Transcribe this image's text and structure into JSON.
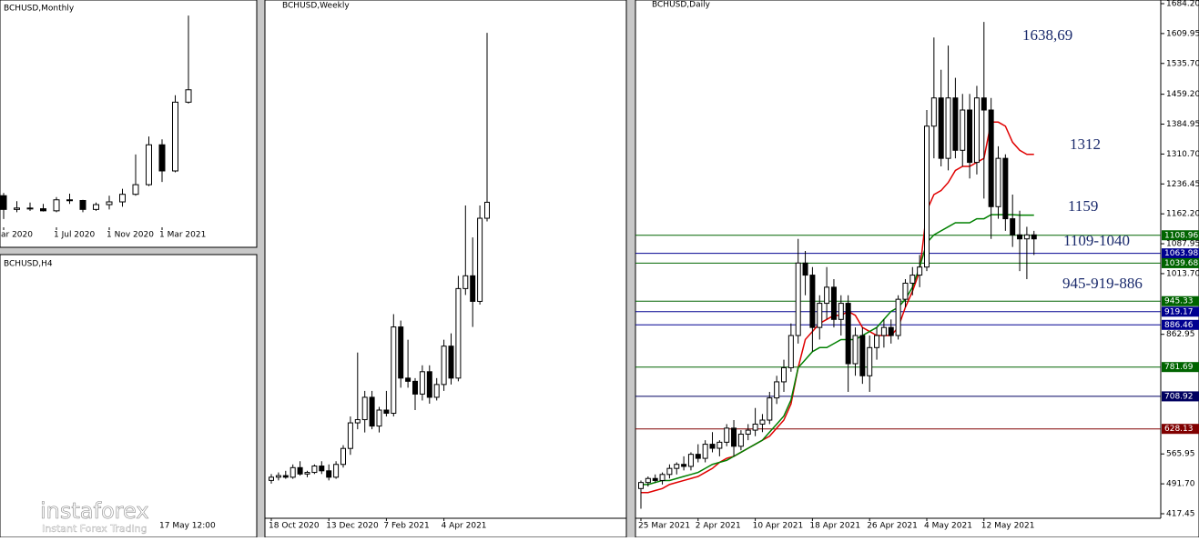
{
  "chart_data": [
    {
      "type": "candlestick",
      "title": "BCHUSD,Monthly",
      "categories": [
        "ar 2020",
        null,
        null,
        null,
        "1 Jul 2020",
        null,
        null,
        null,
        "1 Nov 2020",
        null,
        null,
        null,
        "1 Mar 2021",
        null,
        null
      ],
      "ylim": [
        100,
        1700
      ],
      "ohlc": [
        [
          330,
          350,
          160,
          230
        ],
        [
          230,
          290,
          210,
          240
        ],
        [
          240,
          280,
          220,
          235
        ],
        [
          235,
          270,
          215,
          220
        ],
        [
          220,
          320,
          210,
          300
        ],
        [
          300,
          345,
          270,
          295
        ],
        [
          295,
          300,
          210,
          230
        ],
        [
          230,
          280,
          220,
          265
        ],
        [
          265,
          330,
          230,
          285
        ],
        [
          285,
          380,
          250,
          340
        ],
        [
          340,
          630,
          330,
          410
        ],
        [
          410,
          760,
          400,
          700
        ],
        [
          700,
          740,
          430,
          510
        ],
        [
          510,
          1060,
          500,
          1010
        ],
        [
          1010,
          1640,
          1000,
          1100
        ]
      ]
    },
    {
      "type": "candlestick",
      "title": "BCHUSD,Weekly",
      "categories": [
        "18 Oct 2020",
        null,
        null,
        null,
        null,
        null,
        null,
        null,
        "13 Dec 2020",
        null,
        null,
        null,
        null,
        null,
        null,
        null,
        "7 Feb 2021",
        null,
        null,
        null,
        null,
        null,
        null,
        null,
        "4 Apr 2021",
        null,
        null,
        null,
        null,
        null,
        null
      ],
      "ylim": [
        150,
        1700
      ],
      "ohlc": [
        [
          240,
          260,
          230,
          250
        ],
        [
          250,
          265,
          240,
          255
        ],
        [
          255,
          270,
          245,
          250
        ],
        [
          250,
          290,
          245,
          280
        ],
        [
          280,
          300,
          255,
          260
        ],
        [
          260,
          270,
          250,
          265
        ],
        [
          265,
          290,
          260,
          285
        ],
        [
          285,
          300,
          260,
          270
        ],
        [
          270,
          290,
          240,
          250
        ],
        [
          250,
          300,
          245,
          290
        ],
        [
          290,
          350,
          280,
          340
        ],
        [
          340,
          440,
          320,
          420
        ],
        [
          420,
          640,
          400,
          430
        ],
        [
          430,
          520,
          390,
          500
        ],
        [
          500,
          520,
          400,
          410
        ],
        [
          410,
          470,
          390,
          460
        ],
        [
          460,
          520,
          440,
          450
        ],
        [
          450,
          760,
          440,
          720
        ],
        [
          720,
          740,
          530,
          560
        ],
        [
          560,
          680,
          530,
          550
        ],
        [
          550,
          560,
          460,
          510
        ],
        [
          510,
          600,
          490,
          580
        ],
        [
          580,
          600,
          480,
          500
        ],
        [
          500,
          560,
          490,
          540
        ],
        [
          540,
          680,
          520,
          660
        ],
        [
          660,
          700,
          540,
          560
        ],
        [
          560,
          880,
          550,
          840
        ],
        [
          840,
          1100,
          820,
          880
        ],
        [
          880,
          1000,
          720,
          800
        ],
        [
          800,
          1100,
          790,
          1060
        ],
        [
          1060,
          1640,
          1050,
          1110
        ]
      ]
    },
    {
      "type": "candlestick",
      "title": "BCHUSD,Daily",
      "categories": [
        "25 Mar 2021",
        null,
        null,
        null,
        null,
        null,
        null,
        null,
        "2 Apr 2021",
        null,
        null,
        null,
        null,
        null,
        null,
        null,
        "10 Apr 2021",
        null,
        null,
        null,
        null,
        null,
        null,
        null,
        "18 Apr 2021",
        null,
        null,
        null,
        null,
        null,
        null,
        null,
        "26 Apr 2021",
        null,
        null,
        null,
        null,
        null,
        null,
        null,
        "4 May 2021",
        null,
        null,
        null,
        null,
        null,
        null,
        null,
        "12 May 2021",
        null,
        null,
        null,
        null,
        null,
        null,
        null
      ],
      "ylim": [
        417.45,
        1684.2
      ],
      "yticks": [
        {
          "value": 1684.2,
          "label": "1684.20"
        },
        1609.95,
        {
          "value": 1535.7,
          "label": "1535.70"
        },
        {
          "value": 1459.2,
          "label": "1459.20"
        },
        1384.95,
        {
          "value": 1310.7,
          "label": "1310.70"
        },
        1236.45,
        {
          "value": 1162.2,
          "label": "1162.20"
        },
        1087.95,
        {
          "value": 1013.7,
          "label": "1013.70"
        },
        862.95,
        565.95,
        {
          "value": 491.7,
          "label": "491.70"
        },
        417.45
      ],
      "ohlc": [
        [
          480,
          500,
          430,
          495
        ],
        [
          495,
          510,
          485,
          505
        ],
        [
          505,
          515,
          495,
          500
        ],
        [
          500,
          520,
          490,
          515
        ],
        [
          515,
          540,
          505,
          530
        ],
        [
          530,
          545,
          515,
          540
        ],
        [
          540,
          560,
          525,
          535
        ],
        [
          535,
          570,
          525,
          565
        ],
        [
          565,
          590,
          545,
          555
        ],
        [
          555,
          600,
          545,
          590
        ],
        [
          590,
          620,
          570,
          580
        ],
        [
          580,
          600,
          560,
          595
        ],
        [
          595,
          640,
          585,
          630
        ],
        [
          630,
          650,
          560,
          585
        ],
        [
          585,
          625,
          575,
          615
        ],
        [
          615,
          640,
          600,
          625
        ],
        [
          625,
          680,
          610,
          640
        ],
        [
          640,
          665,
          620,
          650
        ],
        [
          650,
          720,
          640,
          705
        ],
        [
          705,
          760,
          690,
          745
        ],
        [
          745,
          800,
          720,
          780
        ],
        [
          780,
          890,
          770,
          860
        ],
        [
          860,
          1100,
          840,
          1040
        ],
        [
          1040,
          1070,
          960,
          1010
        ],
        [
          1010,
          1030,
          820,
          880
        ],
        [
          880,
          960,
          850,
          940
        ],
        [
          940,
          1030,
          900,
          980
        ],
        [
          980,
          1000,
          880,
          900
        ],
        [
          900,
          960,
          860,
          940
        ],
        [
          940,
          960,
          720,
          790
        ],
        [
          790,
          880,
          760,
          860
        ],
        [
          860,
          880,
          740,
          760
        ],
        [
          760,
          860,
          720,
          830
        ],
        [
          830,
          880,
          800,
          860
        ],
        [
          860,
          900,
          830,
          880
        ],
        [
          880,
          900,
          840,
          860
        ],
        [
          860,
          960,
          850,
          950
        ],
        [
          950,
          1000,
          930,
          990
        ],
        [
          990,
          1030,
          960,
          1010
        ],
        [
          1010,
          1060,
          980,
          1030
        ],
        [
          1030,
          1420,
          1020,
          1380
        ],
        [
          1380,
          1600,
          1300,
          1450
        ],
        [
          1450,
          1520,
          1280,
          1300
        ],
        [
          1300,
          1580,
          1270,
          1450
        ],
        [
          1450,
          1500,
          1300,
          1320
        ],
        [
          1320,
          1460,
          1280,
          1420
        ],
        [
          1420,
          1460,
          1250,
          1290
        ],
        [
          1290,
          1480,
          1260,
          1450
        ],
        [
          1450,
          1638.69,
          1200,
          1420
        ],
        [
          1420,
          1450,
          1100,
          1180
        ],
        [
          1180,
          1330,
          1150,
          1300
        ],
        [
          1300,
          1310,
          1120,
          1150
        ],
        [
          1150,
          1210,
          1080,
          1110
        ],
        [
          1110,
          1170,
          1020,
          1100
        ],
        [
          1100,
          1130,
          1000,
          1110
        ],
        [
          1110,
          1120,
          1060,
          1100
        ]
      ],
      "lines": [
        {
          "color": "#e00000",
          "values": [
            470,
            470,
            475,
            480,
            490,
            495,
            500,
            505,
            510,
            520,
            530,
            545,
            555,
            560,
            570,
            580,
            590,
            600,
            610,
            630,
            650,
            690,
            780,
            850,
            870,
            890,
            900,
            910,
            910,
            920,
            910,
            880,
            870,
            860,
            860,
            860,
            880,
            930,
            970,
            1020,
            1170,
            1210,
            1220,
            1240,
            1270,
            1280,
            1280,
            1290,
            1300,
            1390,
            1390,
            1380,
            1340,
            1320,
            1310,
            1310
          ]
        },
        {
          "color": "#008000",
          "values": [
            490,
            490,
            495,
            500,
            500,
            505,
            510,
            515,
            520,
            530,
            540,
            545,
            550,
            560,
            570,
            580,
            590,
            600,
            620,
            640,
            660,
            700,
            780,
            800,
            820,
            830,
            830,
            840,
            850,
            850,
            850,
            860,
            870,
            880,
            900,
            920,
            930,
            950,
            980,
            1030,
            1090,
            1110,
            1120,
            1130,
            1140,
            1140,
            1140,
            1150,
            1150,
            1160,
            1160,
            1160,
            1160,
            1159,
            1159,
            1159
          ]
        }
      ],
      "levels": [
        {
          "value": 1108.96,
          "color": "#006400"
        },
        {
          "value": 1063.98,
          "color": "#000090"
        },
        {
          "value": 1039.68,
          "color": "#006400"
        },
        {
          "value": 945.33,
          "color": "#006400"
        },
        {
          "value": 919.17,
          "color": "#000090"
        },
        {
          "value": 886.46,
          "color": "#000090"
        },
        {
          "value": 781.69,
          "color": "#006400"
        },
        {
          "value": 708.92,
          "color": "#000060"
        },
        {
          "value": 628.13,
          "color": "#800000"
        }
      ],
      "annotations": [
        "1638,69",
        "1312",
        "1159",
        "1109-1040",
        "945-919-886"
      ]
    }
  ],
  "h4_panel": {
    "title": "BCHUSD,H4",
    "date_label": "17 May 12:00"
  },
  "watermark": {
    "name": "instaforex",
    "tagline": "Instant Forex Trading"
  }
}
